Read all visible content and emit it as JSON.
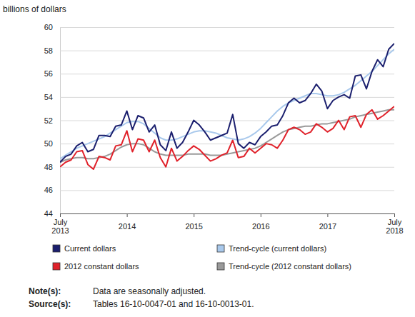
{
  "chart_data": {
    "type": "line",
    "y_label": "billions of dollars",
    "categories": [
      "July 2013",
      null,
      null,
      null,
      null,
      null,
      null,
      null,
      null,
      null,
      null,
      null,
      "2014",
      null,
      null,
      null,
      null,
      null,
      null,
      null,
      null,
      null,
      null,
      null,
      "2015",
      null,
      null,
      null,
      null,
      null,
      null,
      null,
      null,
      null,
      null,
      null,
      "2016",
      null,
      null,
      null,
      null,
      null,
      null,
      null,
      null,
      null,
      null,
      null,
      "2017",
      null,
      null,
      null,
      null,
      null,
      null,
      null,
      null,
      null,
      null,
      null,
      "July 2018"
    ],
    "ylim": [
      44,
      60
    ],
    "yticks": [
      44,
      46,
      48,
      50,
      52,
      54,
      56,
      58,
      60
    ],
    "grid": true,
    "legend": "bottom",
    "series": [
      {
        "name": "Current dollars",
        "color": "#1b1f6e",
        "values": [
          48.4,
          48.9,
          49.1,
          49.8,
          50.1,
          49.3,
          49.5,
          50.7,
          50.7,
          50.6,
          51.5,
          51.6,
          52.8,
          51.2,
          52.4,
          52.2,
          51.0,
          51.6,
          49.9,
          49.4,
          51.0,
          49.6,
          50.1,
          51.0,
          52.0,
          51.6,
          51.0,
          50.3,
          50.5,
          50.7,
          50.9,
          52.5,
          50.0,
          49.6,
          50.1,
          49.9,
          50.6,
          51.0,
          51.5,
          51.6,
          52.4,
          53.5,
          53.9,
          53.5,
          53.7,
          54.3,
          55.1,
          54.5,
          53.0,
          53.7,
          54.0,
          54.2,
          53.9,
          55.8,
          55.9,
          54.7,
          56.2,
          57.2,
          56.6,
          58.1,
          58.6
        ]
      },
      {
        "name": "Trend-cycle (current dollars)",
        "color": "#a9c9ec",
        "values": [
          48.7,
          49.0,
          49.3,
          49.6,
          49.8,
          50.0,
          50.2,
          50.4,
          50.6,
          50.9,
          51.2,
          51.5,
          51.8,
          51.9,
          51.9,
          51.7,
          51.3,
          50.9,
          50.5,
          50.3,
          50.3,
          50.4,
          50.6,
          50.8,
          51.0,
          51.1,
          51.1,
          51.0,
          50.9,
          50.7,
          50.5,
          50.4,
          50.3,
          50.4,
          50.6,
          50.9,
          51.3,
          51.8,
          52.3,
          52.8,
          53.2,
          53.5,
          53.7,
          53.9,
          54.1,
          54.3,
          54.3,
          54.2,
          54.1,
          54.1,
          54.2,
          54.4,
          54.7,
          55.0,
          55.4,
          55.8,
          56.2,
          56.7,
          57.2,
          57.7,
          58.1
        ]
      },
      {
        "name": "2012 constant dollars",
        "color": "#e0222b",
        "values": [
          48.0,
          48.4,
          48.6,
          49.3,
          49.4,
          48.2,
          47.8,
          48.9,
          48.8,
          48.6,
          49.8,
          49.9,
          51.1,
          49.3,
          50.4,
          50.3,
          49.3,
          50.3,
          48.8,
          48.0,
          49.6,
          48.5,
          48.9,
          49.4,
          49.8,
          49.5,
          49.0,
          48.5,
          48.7,
          49.0,
          49.2,
          50.3,
          48.8,
          48.9,
          49.6,
          49.2,
          49.6,
          50.0,
          49.9,
          49.6,
          50.3,
          51.2,
          51.4,
          51.2,
          50.8,
          51.0,
          51.7,
          51.4,
          51.0,
          51.3,
          52.0,
          51.2,
          52.3,
          52.4,
          51.4,
          52.5,
          52.9,
          52.1,
          52.4,
          52.8,
          53.2
        ]
      },
      {
        "name": "Trend-cycle (2012 constant dollars)",
        "color": "#9a9a9a",
        "values": [
          48.4,
          48.6,
          48.7,
          48.8,
          48.8,
          48.7,
          48.7,
          48.8,
          48.9,
          49.1,
          49.4,
          49.7,
          49.9,
          50.0,
          50.0,
          49.9,
          49.6,
          49.3,
          49.1,
          49.0,
          49.0,
          49.0,
          49.0,
          49.1,
          49.1,
          49.1,
          49.1,
          49.0,
          49.0,
          49.0,
          49.1,
          49.2,
          49.3,
          49.4,
          49.5,
          49.6,
          49.8,
          50.1,
          50.4,
          50.7,
          51.0,
          51.2,
          51.3,
          51.4,
          51.5,
          51.5,
          51.6,
          51.7,
          51.7,
          51.8,
          51.9,
          52.0,
          52.1,
          52.3,
          52.4,
          52.5,
          52.6,
          52.7,
          52.8,
          52.9,
          52.9
        ]
      }
    ],
    "notes": [
      {
        "label": "Note(s):",
        "text": "Data are seasonally adjusted."
      },
      {
        "label": "Source(s):",
        "text": "Tables 16-10-0047-01 and 16-10-0013-01."
      }
    ]
  }
}
